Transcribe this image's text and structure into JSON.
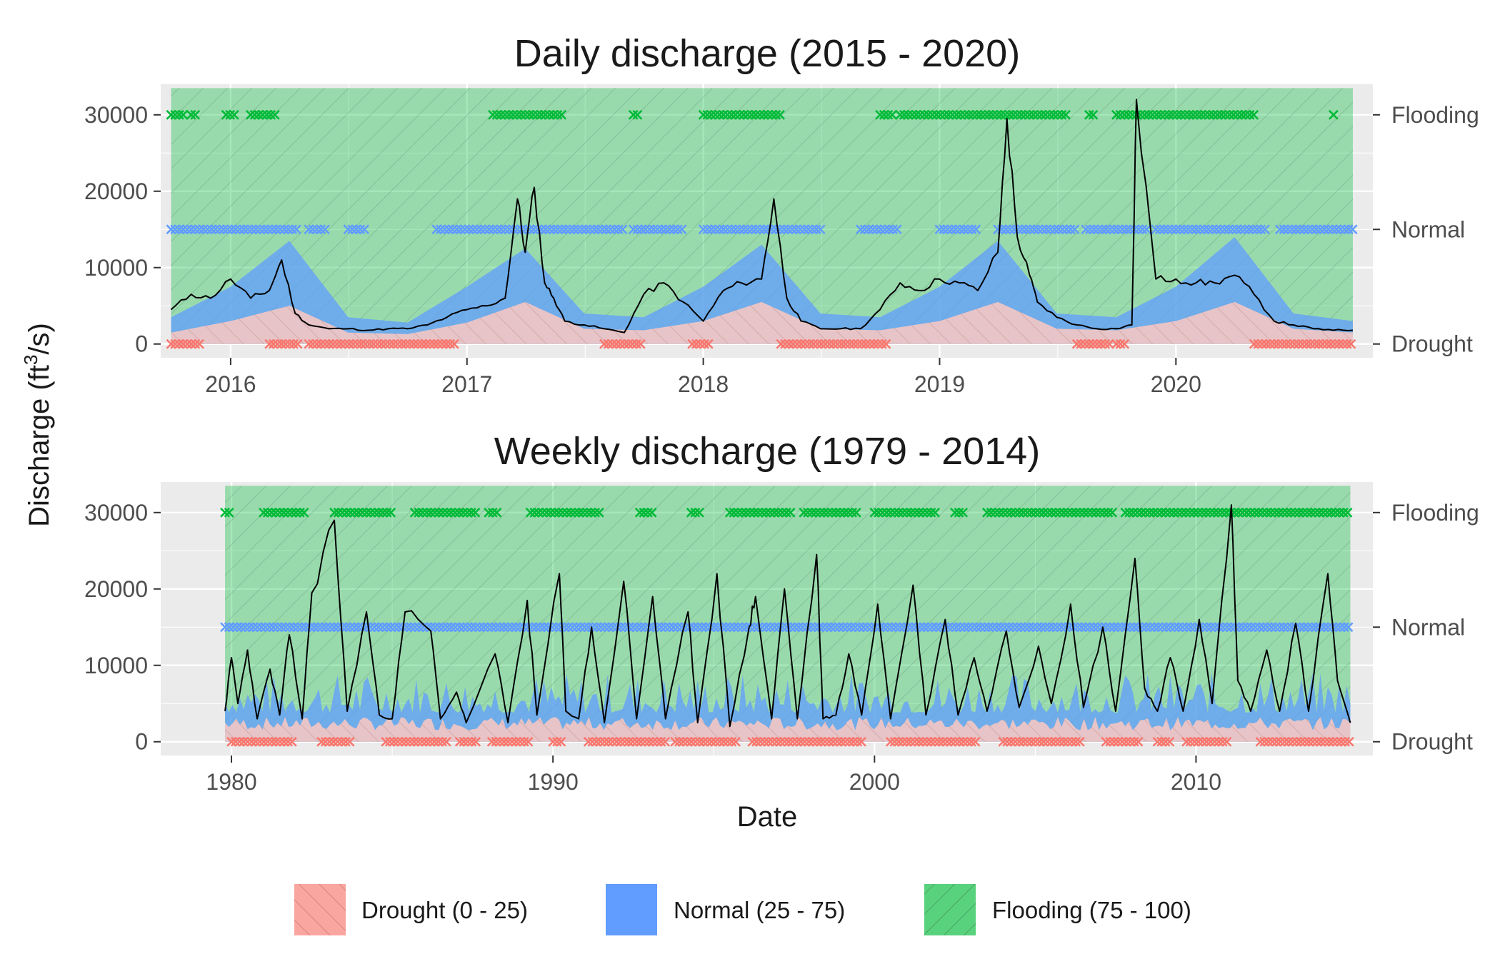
{
  "colors": {
    "drought": "#F8766D",
    "normal": "#619CFF",
    "flooding": "#00BA38",
    "line": "#000000",
    "panel": "#EBEBEB",
    "grid": "#FFFFFF"
  },
  "figure": {
    "y_axis_label_main": "Discharge (ft",
    "y_axis_label_sup": "3",
    "y_axis_label_tail": "/s)",
    "x_axis_label": "Date"
  },
  "legend": {
    "position": "bottom",
    "items": [
      {
        "label": "Drought (0 - 25)",
        "color": "#F8766D"
      },
      {
        "label": "Normal (25 - 75)",
        "color": "#619CFF"
      },
      {
        "label": "Flooding (75 - 100)",
        "color": "#00BA38"
      }
    ]
  },
  "chart_data": [
    {
      "type": "line",
      "title": "Daily discharge (2015 - 2020)",
      "xlabel": "Date",
      "ylabel": "Discharge (ft^3/s)",
      "x_range": [
        "2015-09-15",
        "2020-11-01"
      ],
      "ylim": [
        -1800,
        34000
      ],
      "yticks": [
        0,
        10000,
        20000,
        30000
      ],
      "ytick_labels": [
        "0",
        "10000",
        "20000",
        "30000"
      ],
      "xticks": [
        "2016-01-01",
        "2017-01-01",
        "2018-01-01",
        "2019-01-01",
        "2020-01-01"
      ],
      "xtick_labels": [
        "2016",
        "2017",
        "2018",
        "2019",
        "2020"
      ],
      "secondary_axis": {
        "labels": [
          "Drought",
          "Normal",
          "Flooding"
        ],
        "values": [
          0,
          15000,
          30000
        ]
      },
      "grid": true,
      "series": [
        {
          "name": "Discharge",
          "x": [
            "2015-10-01",
            "2015-11-01",
            "2015-12-01",
            "2016-01-01",
            "2016-02-01",
            "2016-03-01",
            "2016-03-20",
            "2016-04-10",
            "2016-05-01",
            "2016-06-01",
            "2016-07-01",
            "2016-08-01",
            "2016-09-01",
            "2016-10-01",
            "2016-11-01",
            "2016-12-01",
            "2017-01-01",
            "2017-02-01",
            "2017-03-01",
            "2017-03-20",
            "2017-04-01",
            "2017-04-15",
            "2017-05-01",
            "2017-05-15",
            "2017-06-01",
            "2017-07-01",
            "2017-08-01",
            "2017-09-01",
            "2017-10-01",
            "2017-11-01",
            "2017-12-01",
            "2018-01-01",
            "2018-02-01",
            "2018-03-01",
            "2018-04-01",
            "2018-04-20",
            "2018-05-10",
            "2018-06-01",
            "2018-07-01",
            "2018-08-01",
            "2018-09-01",
            "2018-10-01",
            "2018-11-01",
            "2018-12-01",
            "2019-01-01",
            "2019-02-01",
            "2019-03-01",
            "2019-04-01",
            "2019-04-15",
            "2019-05-01",
            "2019-05-20",
            "2019-06-01",
            "2019-07-01",
            "2019-08-01",
            "2019-09-01",
            "2019-10-01",
            "2019-10-25",
            "2019-11-01",
            "2019-12-01",
            "2020-01-01",
            "2020-02-01",
            "2020-03-01",
            "2020-04-01",
            "2020-05-01",
            "2020-06-01",
            "2020-07-01",
            "2020-08-01",
            "2020-09-01",
            "2020-10-01"
          ],
          "y": [
            4500,
            6500,
            6000,
            8500,
            6000,
            7000,
            11000,
            4000,
            2500,
            2000,
            2000,
            1800,
            2000,
            2000,
            2500,
            3500,
            4500,
            5000,
            6000,
            19000,
            12000,
            20500,
            8000,
            6000,
            3000,
            2500,
            2000,
            1500,
            6500,
            8000,
            5500,
            3000,
            7000,
            8000,
            8500,
            19000,
            6000,
            3000,
            2000,
            2000,
            2000,
            4500,
            8000,
            7000,
            8500,
            8000,
            7000,
            12000,
            29500,
            14000,
            9000,
            5500,
            3500,
            2500,
            2000,
            2000,
            2500,
            32000,
            8500,
            8500,
            8000,
            8000,
            9000,
            6500,
            3000,
            2500,
            2000,
            1800,
            1800
          ]
        },
        {
          "name": "Drought (0 - 25)",
          "type": "area",
          "x": [
            "2015-10-01",
            "2016-01-01",
            "2016-04-01",
            "2016-07-01",
            "2016-10-01",
            "2017-01-01",
            "2017-04-01",
            "2017-07-01",
            "2017-10-01",
            "2018-01-01",
            "2018-04-01",
            "2018-07-01",
            "2018-10-01",
            "2019-01-01",
            "2019-04-01",
            "2019-07-01",
            "2019-10-01",
            "2020-01-01",
            "2020-04-01",
            "2020-07-01",
            "2020-10-01"
          ],
          "y": [
            1500,
            3000,
            5000,
            1500,
            1300,
            2800,
            5500,
            2000,
            1800,
            3000,
            5500,
            2000,
            1800,
            3000,
            5500,
            2000,
            1800,
            3000,
            5500,
            2000,
            1500
          ]
        },
        {
          "name": "Normal (25 - 75)",
          "type": "area",
          "x": [
            "2015-10-01",
            "2016-01-01",
            "2016-04-01",
            "2016-07-01",
            "2016-10-01",
            "2017-01-01",
            "2017-04-01",
            "2017-07-01",
            "2017-10-01",
            "2018-01-01",
            "2018-04-01",
            "2018-07-01",
            "2018-10-01",
            "2019-01-01",
            "2019-04-01",
            "2019-07-01",
            "2019-10-01",
            "2020-01-01",
            "2020-04-01",
            "2020-07-01",
            "2020-10-01"
          ],
          "y": [
            3500,
            7500,
            13500,
            3500,
            2800,
            7500,
            12500,
            4000,
            3500,
            7500,
            13000,
            4000,
            3500,
            7500,
            13500,
            4000,
            3500,
            7500,
            14000,
            4000,
            3000
          ]
        },
        {
          "name": "Flooding (75 - 100)",
          "type": "area",
          "y": [
            33500
          ]
        }
      ],
      "markers": {
        "Flooding": {
          "y": 30000,
          "ranges": [
            [
              "2015-10-01",
              "2015-10-20"
            ],
            [
              "2015-11-01",
              "2015-11-10"
            ],
            [
              "2015-12-25",
              "2016-01-10"
            ],
            [
              "2016-02-01",
              "2016-03-10"
            ],
            [
              "2017-02-10",
              "2017-06-01"
            ],
            [
              "2017-09-15",
              "2017-09-25"
            ],
            [
              "2018-01-01",
              "2018-05-01"
            ],
            [
              "2018-10-01",
              "2018-10-20"
            ],
            [
              "2018-11-01",
              "2019-07-15"
            ],
            [
              "2019-08-20",
              "2019-08-30"
            ],
            [
              "2019-10-01",
              "2020-05-01"
            ],
            [
              "2020-09-01",
              "2020-09-05"
            ]
          ]
        },
        "Normal": {
          "y": 15000,
          "ranges": [
            [
              "2015-10-01",
              "2016-04-15"
            ],
            [
              "2016-05-01",
              "2016-06-01"
            ],
            [
              "2016-07-01",
              "2016-08-01"
            ],
            [
              "2016-11-15",
              "2017-09-01"
            ],
            [
              "2017-09-15",
              "2017-11-30"
            ],
            [
              "2018-01-01",
              "2018-07-01"
            ],
            [
              "2018-09-01",
              "2018-11-01"
            ],
            [
              "2019-01-01",
              "2019-03-01"
            ],
            [
              "2019-04-01",
              "2019-08-01"
            ],
            [
              "2019-08-15",
              "2019-11-20"
            ],
            [
              "2019-12-01",
              "2020-05-20"
            ],
            [
              "2020-06-10",
              "2020-10-01"
            ]
          ]
        },
        "Drought": {
          "y": 0,
          "ranges": [
            [
              "2015-10-01",
              "2015-11-15"
            ],
            [
              "2016-03-01",
              "2016-04-20"
            ],
            [
              "2016-05-01",
              "2016-12-15"
            ],
            [
              "2017-08-01",
              "2017-10-01"
            ],
            [
              "2017-12-15",
              "2018-01-15"
            ],
            [
              "2018-05-01",
              "2018-10-15"
            ],
            [
              "2019-08-01",
              "2019-09-20"
            ],
            [
              "2019-10-01",
              "2019-10-15"
            ],
            [
              "2020-05-01",
              "2020-10-01"
            ]
          ]
        }
      }
    },
    {
      "type": "line",
      "title": "Weekly discharge (1979 - 2014)",
      "xlabel": "Date",
      "ylabel": "Discharge (ft^3/s)",
      "x_range": [
        1977.8,
        2015.5
      ],
      "ylim": [
        -1800,
        34000
      ],
      "yticks": [
        0,
        10000,
        20000,
        30000
      ],
      "ytick_labels": [
        "0",
        "10000",
        "20000",
        "30000"
      ],
      "xticks": [
        1980,
        1990,
        2000,
        2010
      ],
      "xtick_labels": [
        "1980",
        "1990",
        "2000",
        "2010"
      ],
      "secondary_axis": {
        "labels": [
          "Drought",
          "Normal",
          "Flooding"
        ],
        "values": [
          0,
          15000,
          30000
        ]
      },
      "grid": true,
      "series": [
        {
          "name": "Discharge",
          "x": [
            1979.8,
            1980.0,
            1980.2,
            1980.5,
            1980.8,
            1981.2,
            1981.5,
            1981.8,
            1982.2,
            1982.5,
            1983.2,
            1983.6,
            1984.2,
            1984.6,
            1985.0,
            1985.4,
            1986.2,
            1986.5,
            1987.0,
            1987.3,
            1988.2,
            1988.6,
            1989.2,
            1989.5,
            1990.2,
            1990.4,
            1990.8,
            1991.2,
            1991.6,
            1992.2,
            1992.6,
            1993.1,
            1993.5,
            1994.2,
            1994.5,
            1995.1,
            1995.5,
            1996.1,
            1996.3,
            1996.8,
            1997.2,
            1997.6,
            1998.2,
            1998.4,
            1998.8,
            1999.2,
            1999.6,
            2000.1,
            2000.5,
            2001.2,
            2001.6,
            2002.2,
            2002.6,
            2003.1,
            2003.5,
            2004.1,
            2004.5,
            2005.1,
            2005.5,
            2006.1,
            2006.5,
            2007.1,
            2007.5,
            2008.1,
            2008.4,
            2008.8,
            2009.2,
            2009.6,
            2010.1,
            2010.5,
            2011.1,
            2011.3,
            2011.7,
            2012.2,
            2012.6,
            2013.1,
            2013.5,
            2014.1,
            2014.4,
            2014.8
          ],
          "y": [
            4000,
            11000,
            5000,
            12000,
            3000,
            9500,
            3500,
            14000,
            3000,
            19500,
            29000,
            4000,
            17000,
            3500,
            3000,
            17000,
            14500,
            3000,
            6500,
            2500,
            11500,
            2500,
            18500,
            3500,
            22000,
            4000,
            3000,
            15000,
            2500,
            21000,
            3000,
            19000,
            3000,
            17000,
            2500,
            22000,
            2000,
            15000,
            19000,
            3000,
            20000,
            3000,
            24500,
            3000,
            3500,
            11500,
            3500,
            18000,
            3000,
            20500,
            3500,
            16000,
            3500,
            11000,
            4000,
            14500,
            4500,
            12500,
            5000,
            18000,
            4500,
            15000,
            4000,
            24000,
            7000,
            4000,
            11000,
            4000,
            16000,
            5000,
            31000,
            8000,
            4000,
            12000,
            4000,
            15500,
            4000,
            22000,
            8000,
            2500
          ]
        },
        {
          "name": "Drought (0 - 25)",
          "type": "area",
          "y_typical": [
            1500,
            4000
          ]
        },
        {
          "name": "Normal (25 - 75)",
          "type": "area",
          "y_typical": [
            3000,
            9000
          ]
        },
        {
          "name": "Flooding (75 - 100)",
          "type": "area",
          "y": [
            33500
          ]
        }
      ],
      "markers": {
        "Flooding": {
          "y": 30000,
          "ranges": [
            [
              1979.8,
              1980.0
            ],
            [
              1981.0,
              1982.3
            ],
            [
              1983.2,
              1985.0
            ],
            [
              1985.7,
              1987.6
            ],
            [
              1988.0,
              1988.3
            ],
            [
              1989.3,
              1991.5
            ],
            [
              1992.7,
              1993.2
            ],
            [
              1994.3,
              1994.6
            ],
            [
              1995.5,
              1997.5
            ],
            [
              1997.8,
              1999.5
            ],
            [
              2000.0,
              2002.0
            ],
            [
              2002.5,
              2002.8
            ],
            [
              2003.5,
              2007.5
            ],
            [
              2007.8,
              2014.8
            ]
          ]
        },
        "Normal": {
          "y": 15000,
          "ranges": [
            [
              1979.8,
              2014.8
            ]
          ]
        },
        "Drought": {
          "y": 0,
          "ranges": [
            [
              1980.0,
              1982.0
            ],
            [
              1982.8,
              1983.8
            ],
            [
              1984.8,
              1986.8
            ],
            [
              1987.1,
              1987.7
            ],
            [
              1988.1,
              1989.3
            ],
            [
              1990.0,
              1990.3
            ],
            [
              1991.1,
              1993.5
            ],
            [
              1993.8,
              1995.7
            ],
            [
              1996.2,
              1999.7
            ],
            [
              2000.5,
              2003.2
            ],
            [
              2004.0,
              2006.5
            ],
            [
              2007.2,
              2008.3
            ],
            [
              2008.8,
              2009.2
            ],
            [
              2009.7,
              2011.0
            ],
            [
              2012.0,
              2014.8
            ]
          ]
        }
      }
    }
  ]
}
